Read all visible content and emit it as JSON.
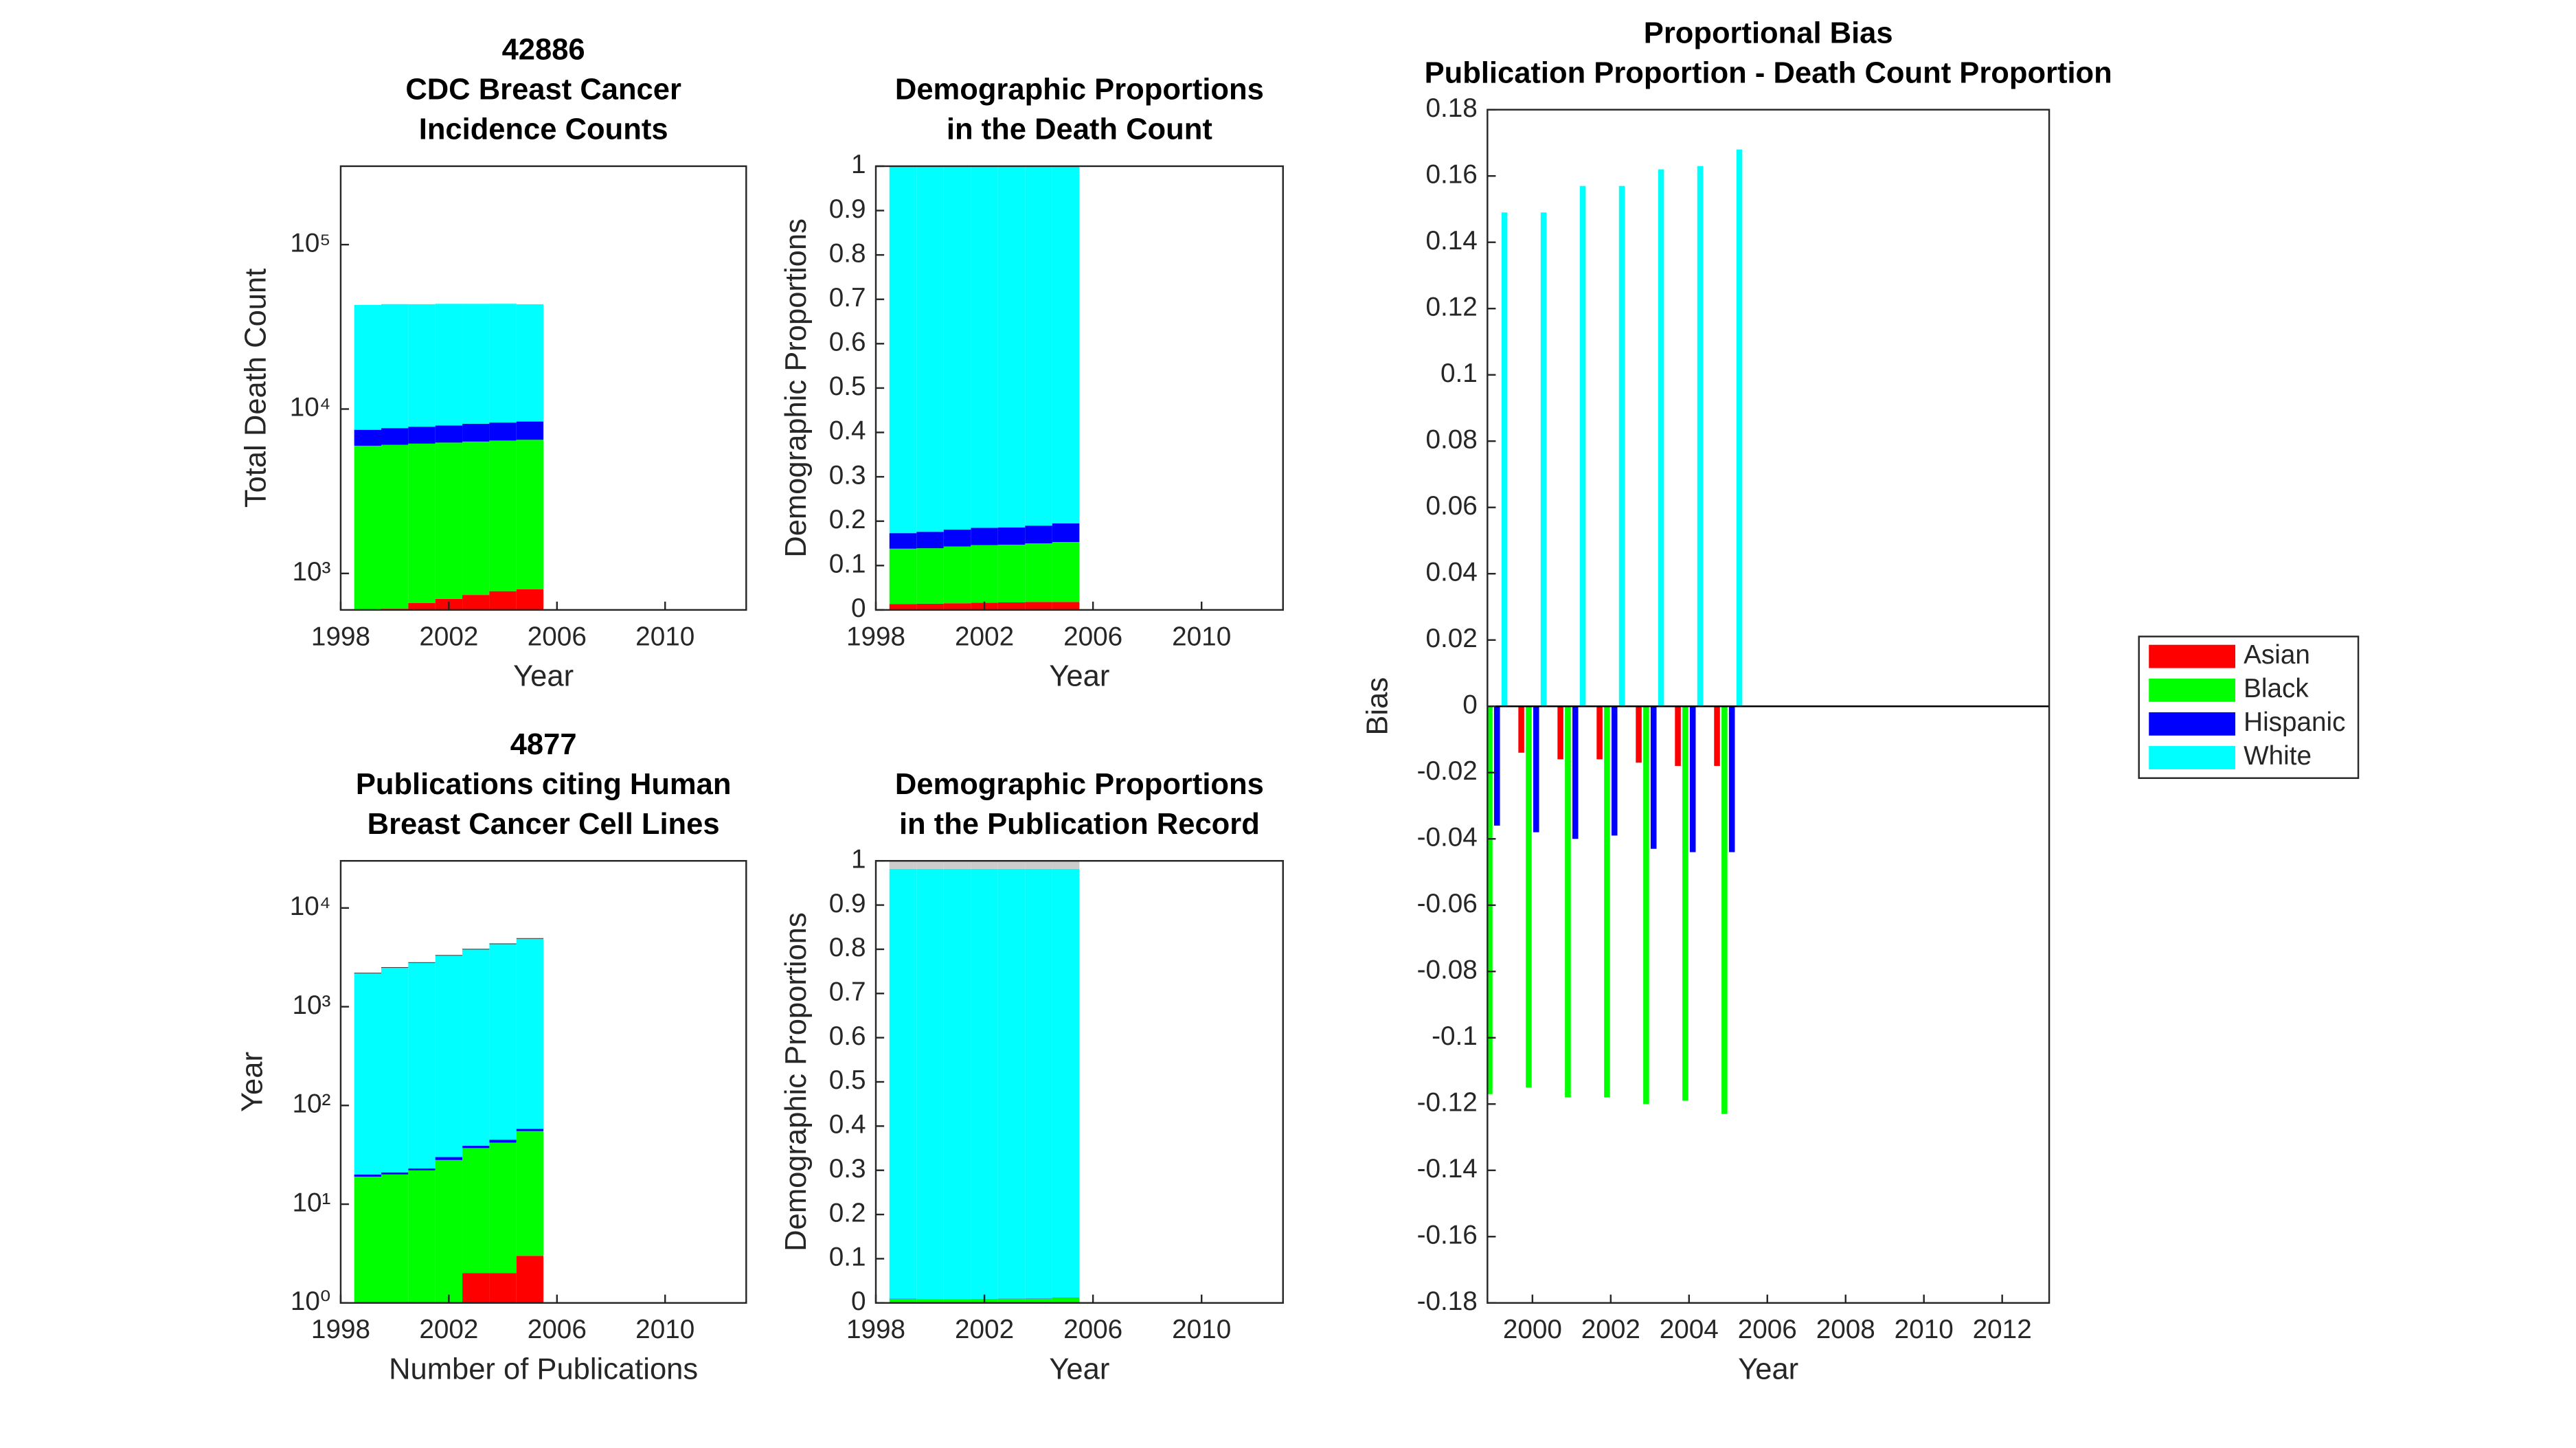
{
  "chart_data": [
    {
      "type": "bar",
      "stacked": true,
      "title": [
        "42886",
        "CDC Breast Cancer",
        "Incidence Counts"
      ],
      "xlabel": "Year",
      "ylabel": "Total Death Count",
      "x": [
        1999,
        2000,
        2001,
        2002,
        2003,
        2004,
        2005
      ],
      "xlim": [
        1998,
        2013
      ],
      "xticks": [
        1998,
        2002,
        2006,
        2010
      ],
      "ylim": [
        600,
        300000
      ],
      "yscale": "log",
      "yticks": [
        {
          "value": 1000,
          "label": "10³"
        },
        {
          "value": 10000,
          "label": "10⁴"
        },
        {
          "value": 100000,
          "label": "10⁵"
        }
      ],
      "series": [
        {
          "color": "#ff0000",
          "values": [
            580,
            610,
            660,
            700,
            740,
            780,
            800
          ]
        },
        {
          "color": "#00ff00",
          "values": [
            5400,
            5450,
            5500,
            5550,
            5600,
            5650,
            5700
          ]
        },
        {
          "color": "#0000ff",
          "values": [
            1500,
            1600,
            1650,
            1700,
            1800,
            1850,
            1900
          ]
        },
        {
          "color": "#00ffff",
          "values": [
            35500,
            35800,
            35600,
            35700,
            35500,
            35400,
            35000
          ]
        }
      ]
    },
    {
      "type": "bar",
      "stacked": true,
      "title": [
        "Demographic Proportions",
        "in the Death Count"
      ],
      "xlabel": "Year",
      "ylabel": "Demographic Proportions",
      "x": [
        1999,
        2000,
        2001,
        2002,
        2003,
        2004,
        2005
      ],
      "xlim": [
        1998,
        2013
      ],
      "xticks": [
        1998,
        2002,
        2006,
        2010
      ],
      "ylim": [
        0,
        1
      ],
      "yticks": [
        0,
        0.1,
        0.2,
        0.3,
        0.4,
        0.5,
        0.6,
        0.7,
        0.8,
        0.9,
        1
      ],
      "series": [
        {
          "color": "#ff0000",
          "values": [
            0.013,
            0.014,
            0.015,
            0.016,
            0.017,
            0.018,
            0.018
          ]
        },
        {
          "color": "#00ff00",
          "values": [
            0.125,
            0.125,
            0.128,
            0.13,
            0.13,
            0.132,
            0.135
          ]
        },
        {
          "color": "#0000ff",
          "values": [
            0.035,
            0.037,
            0.038,
            0.039,
            0.039,
            0.04,
            0.042
          ]
        },
        {
          "color": "#00ffff",
          "values": [
            0.827,
            0.824,
            0.819,
            0.815,
            0.814,
            0.81,
            0.805
          ]
        }
      ]
    },
    {
      "type": "bar",
      "stacked": true,
      "title": [
        "4877",
        "Publications citing Human",
        "Breast Cancer Cell Lines"
      ],
      "xlabel": "Number of Publications",
      "ylabel": "Year",
      "x": [
        1999,
        2000,
        2001,
        2002,
        2003,
        2004,
        2005
      ],
      "xlim": [
        1998,
        2013
      ],
      "xticks": [
        1998,
        2002,
        2006,
        2010
      ],
      "ylim": [
        1,
        30000
      ],
      "yscale": "log",
      "yticks": [
        {
          "value": 1,
          "label": "10⁰"
        },
        {
          "value": 10,
          "label": "10¹"
        },
        {
          "value": 100,
          "label": "10²"
        },
        {
          "value": 1000,
          "label": "10³"
        },
        {
          "value": 10000,
          "label": "10⁴"
        }
      ],
      "series": [
        {
          "color": "#ff0000",
          "values": [
            0,
            0,
            0,
            0,
            2,
            2,
            3
          ]
        },
        {
          "color": "#00ff00",
          "values": [
            19,
            20,
            22,
            28,
            35,
            40,
            52
          ]
        },
        {
          "color": "#0000ff",
          "values": [
            1,
            1,
            1,
            2,
            2,
            3,
            3
          ]
        },
        {
          "color": "#00ffff",
          "values": [
            2150,
            2450,
            2750,
            3250,
            3750,
            4250,
            4800
          ]
        },
        {
          "color": "#404040",
          "values": [
            40,
            45,
            50,
            60,
            70,
            80,
            90
          ]
        }
      ]
    },
    {
      "type": "bar",
      "stacked": true,
      "title": [
        "Demographic Proportions",
        "in the Publication Record"
      ],
      "xlabel": "Year",
      "ylabel": "Demographic Proportions",
      "x": [
        1999,
        2000,
        2001,
        2002,
        2003,
        2004,
        2005
      ],
      "xlim": [
        1998,
        2013
      ],
      "xticks": [
        1998,
        2002,
        2006,
        2010
      ],
      "ylim": [
        0,
        1
      ],
      "yticks": [
        0,
        0.1,
        0.2,
        0.3,
        0.4,
        0.5,
        0.6,
        0.7,
        0.8,
        0.9,
        1
      ],
      "series": [
        {
          "color": "#ff0000",
          "values": [
            0,
            0,
            0,
            0,
            0.0005,
            0.0005,
            0.0006
          ]
        },
        {
          "color": "#00ff00",
          "values": [
            0.009,
            0.008,
            0.008,
            0.008,
            0.009,
            0.009,
            0.011
          ]
        },
        {
          "color": "#0000ff",
          "values": [
            0.0005,
            0.0004,
            0.0004,
            0.0006,
            0.0005,
            0.0007,
            0.0006
          ]
        },
        {
          "color": "#00ffff",
          "values": [
            0.9725,
            0.9736,
            0.9736,
            0.9734,
            0.972,
            0.9718,
            0.9698
          ]
        },
        {
          "color": "#cccccc",
          "values": [
            0.018,
            0.018,
            0.018,
            0.018,
            0.018,
            0.018,
            0.018
          ]
        }
      ]
    },
    {
      "type": "bar",
      "stacked": false,
      "title": [
        "Proportional Bias",
        "Publication Proportion - Death Count Proportion"
      ],
      "xlabel": "Year",
      "ylabel": "Bias",
      "x": [
        1999,
        2000,
        2001,
        2002,
        2003,
        2004,
        2005
      ],
      "xlim": [
        1998.85,
        2013.2
      ],
      "xticks": [
        2000,
        2002,
        2004,
        2006,
        2008,
        2010,
        2012
      ],
      "ylim": [
        -0.18,
        0.18
      ],
      "yticks": [
        -0.18,
        -0.16,
        -0.14,
        -0.12,
        -0.1,
        -0.08,
        -0.06,
        -0.04,
        -0.02,
        0,
        0.02,
        0.04,
        0.06,
        0.08,
        0.1,
        0.12,
        0.14,
        0.16,
        0.18
      ],
      "legend": "east-outside",
      "series": [
        {
          "name": "Asian",
          "color": "#ff0000",
          "values": [
            -0.014,
            -0.014,
            -0.016,
            -0.016,
            -0.017,
            -0.018,
            -0.018
          ]
        },
        {
          "name": "Black",
          "color": "#00ff00",
          "values": [
            -0.117,
            -0.115,
            -0.118,
            -0.118,
            -0.12,
            -0.119,
            -0.123
          ]
        },
        {
          "name": "Hispanic",
          "color": "#0000ff",
          "values": [
            -0.036,
            -0.038,
            -0.04,
            -0.039,
            -0.043,
            -0.044,
            -0.044
          ]
        },
        {
          "name": "White",
          "color": "#00ffff",
          "values": [
            0.149,
            0.149,
            0.157,
            0.157,
            0.162,
            0.163,
            0.168
          ]
        }
      ]
    }
  ]
}
